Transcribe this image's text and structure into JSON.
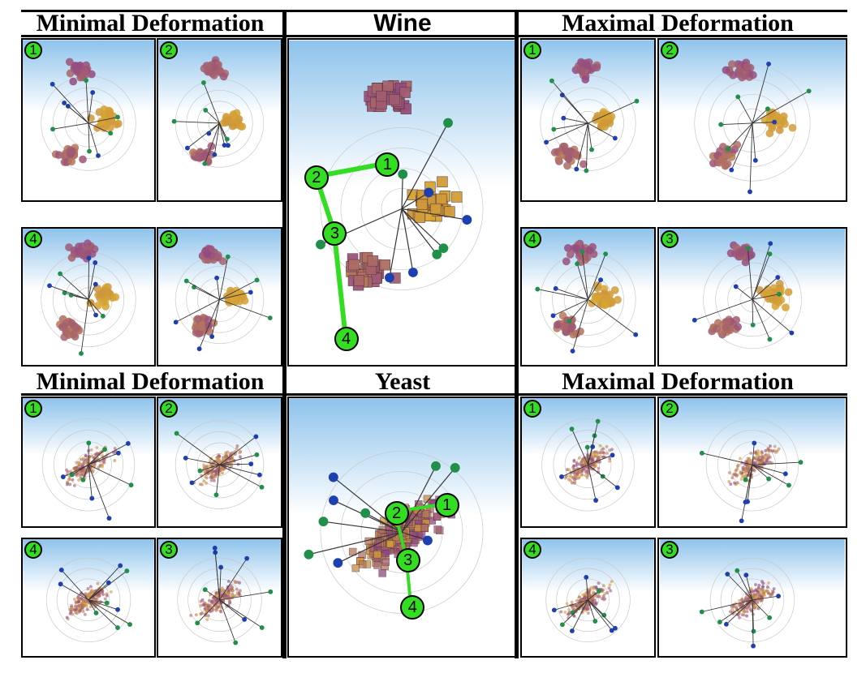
{
  "titles": {
    "wine_min": "Minimal Deformation",
    "wine_center": "Wine",
    "wine_max": "Maximal Deformation",
    "yeast_min": "Minimal Deformation",
    "yeast_center": "Yeast",
    "yeast_max": "Maximal Deformation"
  },
  "steps": [
    "1",
    "2",
    "3",
    "4"
  ],
  "colors": {
    "sky_top": "#8ec3ec",
    "sky_bottom": "#ffffff",
    "path": "#33dd22",
    "point_purple": "#8a3e8e",
    "point_gold": "#d8a530",
    "axis_line": "#333333",
    "axis_blue": "#1e3fb0",
    "axis_green": "#1f8f4a"
  }
}
